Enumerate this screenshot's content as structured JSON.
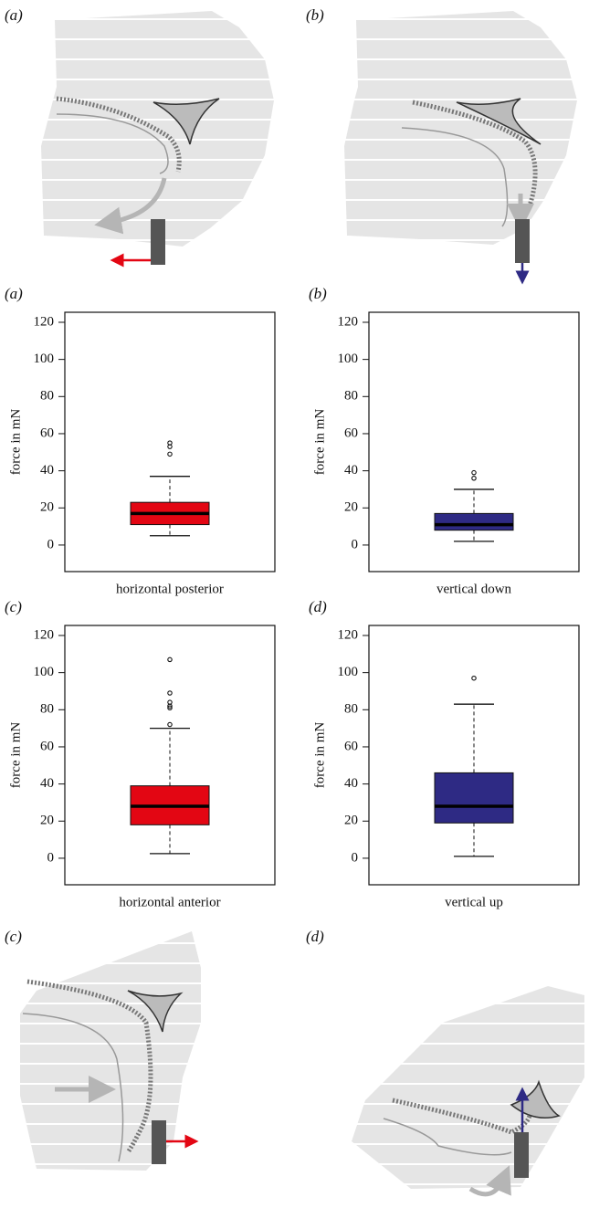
{
  "diagram_labels": [
    "(a)",
    "(b)",
    "(c)",
    "(d)"
  ],
  "chart_data": [
    {
      "type": "box",
      "title": "(a)",
      "ylabel": "force in mN",
      "xlabel": "horizontal posterior",
      "color": "#e30613",
      "whisker_low": 5,
      "q1": 11,
      "median": 17,
      "q3": 23,
      "whisker_high": 37,
      "outliers": [
        49,
        53,
        55
      ],
      "ylim": [
        -14.3,
        125.4
      ],
      "yticks": [
        0,
        20,
        40,
        60,
        80,
        100,
        120
      ]
    },
    {
      "type": "box",
      "title": "(b)",
      "ylabel": "force in mN",
      "xlabel": "vertical down",
      "color": "#2e2a84",
      "whisker_low": 2,
      "q1": 8,
      "median": 11,
      "q3": 17,
      "whisker_high": 30,
      "outliers": [
        36,
        39
      ],
      "ylim": [
        -14.3,
        125.4
      ],
      "yticks": [
        0,
        20,
        40,
        60,
        80,
        100,
        120
      ]
    },
    {
      "type": "box",
      "title": "(c)",
      "ylabel": "force in mN",
      "xlabel": "horizontal anterior",
      "color": "#e30613",
      "whisker_low": 2.5,
      "q1": 18,
      "median": 28,
      "q3": 39,
      "whisker_high": 70,
      "outliers": [
        72,
        81,
        82,
        84,
        89,
        107
      ],
      "ylim": [
        -14.3,
        125.4
      ],
      "yticks": [
        0,
        20,
        40,
        60,
        80,
        100,
        120
      ]
    },
    {
      "type": "box",
      "title": "(d)",
      "ylabel": "force in mN",
      "xlabel": "vertical up",
      "color": "#2e2a84",
      "whisker_low": 1,
      "q1": 19,
      "median": 28,
      "q3": 46,
      "whisker_high": 83,
      "outliers": [
        97
      ],
      "ylim": [
        -14.3,
        125.4
      ],
      "yticks": [
        0,
        20,
        40,
        60,
        80,
        100,
        120
      ]
    }
  ]
}
